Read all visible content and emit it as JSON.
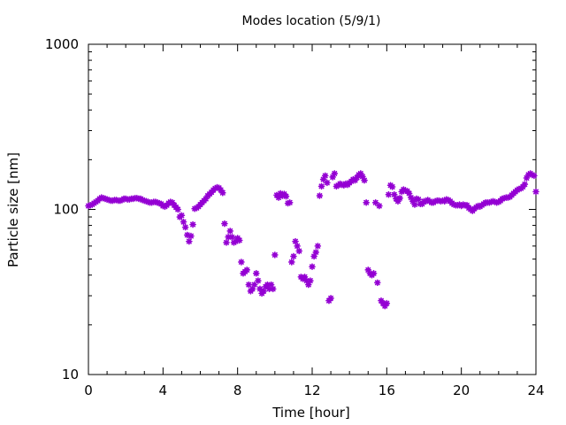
{
  "chart_data": {
    "type": "scatter",
    "title": "Modes location (5/9/1)",
    "xlabel": "Time [hour]",
    "ylabel": "Particle size [nm]",
    "xlim": [
      0,
      24
    ],
    "ylim": [
      10,
      1000
    ],
    "yscale": "log",
    "grid": false,
    "marker_color": "#9400d3",
    "x_ticks": [
      "0",
      "4",
      "8",
      "12",
      "16",
      "20",
      "24"
    ],
    "y_ticks": [
      "10",
      "100",
      "1000"
    ],
    "series": [
      {
        "points": [
          [
            0.0,
            105
          ],
          [
            0.1,
            106
          ],
          [
            0.2,
            107
          ],
          [
            0.3,
            109
          ],
          [
            0.4,
            111
          ],
          [
            0.5,
            113
          ],
          [
            0.6,
            116
          ],
          [
            0.7,
            118
          ],
          [
            0.8,
            117
          ],
          [
            0.9,
            116
          ],
          [
            1.0,
            115
          ],
          [
            1.1,
            114
          ],
          [
            1.2,
            113
          ],
          [
            1.3,
            113
          ],
          [
            1.4,
            114
          ],
          [
            1.5,
            114
          ],
          [
            1.6,
            113
          ],
          [
            1.7,
            113
          ],
          [
            1.8,
            114
          ],
          [
            1.9,
            116
          ],
          [
            2.0,
            116
          ],
          [
            2.1,
            115
          ],
          [
            2.2,
            115
          ],
          [
            2.3,
            116
          ],
          [
            2.4,
            116
          ],
          [
            2.5,
            117
          ],
          [
            2.6,
            117
          ],
          [
            2.7,
            116
          ],
          [
            2.8,
            116
          ],
          [
            2.9,
            114
          ],
          [
            3.0,
            113
          ],
          [
            3.1,
            112
          ],
          [
            3.2,
            111
          ],
          [
            3.3,
            110
          ],
          [
            3.4,
            110
          ],
          [
            3.5,
            111
          ],
          [
            3.6,
            111
          ],
          [
            3.7,
            110
          ],
          [
            3.8,
            109
          ],
          [
            3.9,
            108
          ],
          [
            4.0,
            105
          ],
          [
            4.1,
            104
          ],
          [
            4.2,
            106
          ],
          [
            4.3,
            109
          ],
          [
            4.4,
            111
          ],
          [
            4.5,
            110
          ],
          [
            4.6,
            106
          ],
          [
            4.7,
            103
          ],
          [
            4.8,
            100
          ],
          [
            4.9,
            90
          ],
          [
            5.0,
            92
          ],
          [
            5.1,
            84
          ],
          [
            5.2,
            78
          ],
          [
            5.3,
            70
          ],
          [
            5.4,
            64
          ],
          [
            5.5,
            69
          ],
          [
            5.6,
            81
          ],
          [
            5.7,
            101
          ],
          [
            5.8,
            102
          ],
          [
            5.9,
            104
          ],
          [
            6.0,
            107
          ],
          [
            6.1,
            110
          ],
          [
            6.2,
            113
          ],
          [
            6.3,
            116
          ],
          [
            6.4,
            121
          ],
          [
            6.5,
            124
          ],
          [
            6.6,
            127
          ],
          [
            6.7,
            131
          ],
          [
            6.8,
            134
          ],
          [
            6.9,
            136
          ],
          [
            7.0,
            135
          ],
          [
            7.1,
            131
          ],
          [
            7.2,
            126
          ],
          [
            7.3,
            82
          ],
          [
            7.4,
            63
          ],
          [
            7.5,
            68
          ],
          [
            7.6,
            74
          ],
          [
            7.7,
            68
          ],
          [
            7.8,
            63
          ],
          [
            7.9,
            64
          ],
          [
            8.0,
            67
          ],
          [
            8.1,
            65
          ],
          [
            8.2,
            48
          ],
          [
            8.3,
            41
          ],
          [
            8.4,
            42
          ],
          [
            8.5,
            43
          ],
          [
            8.6,
            35
          ],
          [
            8.7,
            32
          ],
          [
            8.8,
            33
          ],
          [
            8.9,
            35
          ],
          [
            9.0,
            41
          ],
          [
            9.1,
            37
          ],
          [
            9.2,
            33
          ],
          [
            9.3,
            31
          ],
          [
            9.4,
            32
          ],
          [
            9.5,
            34
          ],
          [
            9.6,
            35
          ],
          [
            9.7,
            33
          ],
          [
            9.8,
            35
          ],
          [
            9.9,
            33
          ],
          [
            10.0,
            53
          ],
          [
            10.1,
            122
          ],
          [
            10.2,
            118
          ],
          [
            10.3,
            125
          ],
          [
            10.4,
            121
          ],
          [
            10.5,
            124
          ],
          [
            10.6,
            120
          ],
          [
            10.7,
            109
          ],
          [
            10.8,
            110
          ],
          [
            10.9,
            48
          ],
          [
            11.0,
            52
          ],
          [
            11.1,
            64
          ],
          [
            11.2,
            60
          ],
          [
            11.3,
            56
          ],
          [
            11.4,
            39
          ],
          [
            11.5,
            38
          ],
          [
            11.6,
            39
          ],
          [
            11.7,
            37
          ],
          [
            11.8,
            35
          ],
          [
            11.9,
            37
          ],
          [
            12.0,
            45
          ],
          [
            12.1,
            52
          ],
          [
            12.2,
            55
          ],
          [
            12.3,
            60
          ],
          [
            12.4,
            121
          ],
          [
            12.5,
            138
          ],
          [
            12.6,
            152
          ],
          [
            12.7,
            160
          ],
          [
            12.8,
            145
          ],
          [
            12.9,
            28
          ],
          [
            13.0,
            29
          ],
          [
            13.1,
            157
          ],
          [
            13.2,
            165
          ],
          [
            13.3,
            138
          ],
          [
            13.4,
            140
          ],
          [
            13.5,
            143
          ],
          [
            13.6,
            141
          ],
          [
            13.7,
            140
          ],
          [
            13.8,
            143
          ],
          [
            13.9,
            141
          ],
          [
            14.0,
            145
          ],
          [
            14.1,
            148
          ],
          [
            14.2,
            152
          ],
          [
            14.3,
            150
          ],
          [
            14.4,
            156
          ],
          [
            14.5,
            162
          ],
          [
            14.6,
            165
          ],
          [
            14.7,
            158
          ],
          [
            14.8,
            150
          ],
          [
            14.9,
            110
          ],
          [
            15.0,
            43
          ],
          [
            15.1,
            41
          ],
          [
            15.2,
            40
          ],
          [
            15.3,
            41
          ],
          [
            15.4,
            110
          ],
          [
            15.5,
            36
          ],
          [
            15.6,
            105
          ],
          [
            15.7,
            28
          ],
          [
            15.8,
            27
          ],
          [
            15.9,
            26
          ],
          [
            16.0,
            27
          ],
          [
            16.1,
            123
          ],
          [
            16.2,
            140
          ],
          [
            16.3,
            137
          ],
          [
            16.4,
            123
          ],
          [
            16.5,
            116
          ],
          [
            16.6,
            112
          ],
          [
            16.7,
            117
          ],
          [
            16.8,
            128
          ],
          [
            16.9,
            132
          ],
          [
            17.0,
            130
          ],
          [
            17.1,
            129
          ],
          [
            17.2,
            125
          ],
          [
            17.3,
            118
          ],
          [
            17.4,
            112
          ],
          [
            17.5,
            107
          ],
          [
            17.6,
            116
          ],
          [
            17.7,
            115
          ],
          [
            17.8,
            108
          ],
          [
            17.9,
            108
          ],
          [
            18.0,
            112
          ],
          [
            18.1,
            112
          ],
          [
            18.2,
            114
          ],
          [
            18.3,
            112
          ],
          [
            18.4,
            110
          ],
          [
            18.5,
            110
          ],
          [
            18.6,
            112
          ],
          [
            18.7,
            113
          ],
          [
            18.8,
            113
          ],
          [
            18.9,
            112
          ],
          [
            19.0,
            113
          ],
          [
            19.1,
            112
          ],
          [
            19.2,
            115
          ],
          [
            19.3,
            114
          ],
          [
            19.4,
            112
          ],
          [
            19.5,
            109
          ],
          [
            19.6,
            107
          ],
          [
            19.7,
            106
          ],
          [
            19.8,
            106
          ],
          [
            19.9,
            107
          ],
          [
            20.0,
            105
          ],
          [
            20.1,
            107
          ],
          [
            20.2,
            106
          ],
          [
            20.3,
            106
          ],
          [
            20.4,
            102
          ],
          [
            20.5,
            100
          ],
          [
            20.6,
            98
          ],
          [
            20.7,
            101
          ],
          [
            20.8,
            103
          ],
          [
            20.9,
            105
          ],
          [
            21.0,
            104
          ],
          [
            21.1,
            106
          ],
          [
            21.2,
            108
          ],
          [
            21.3,
            110
          ],
          [
            21.4,
            110
          ],
          [
            21.5,
            110
          ],
          [
            21.6,
            111
          ],
          [
            21.7,
            112
          ],
          [
            21.8,
            111
          ],
          [
            21.9,
            110
          ],
          [
            22.0,
            111
          ],
          [
            22.1,
            113
          ],
          [
            22.2,
            116
          ],
          [
            22.3,
            117
          ],
          [
            22.4,
            118
          ],
          [
            22.5,
            118
          ],
          [
            22.6,
            119
          ],
          [
            22.7,
            122
          ],
          [
            22.8,
            125
          ],
          [
            22.9,
            128
          ],
          [
            23.0,
            131
          ],
          [
            23.1,
            133
          ],
          [
            23.2,
            134
          ],
          [
            23.3,
            137
          ],
          [
            23.4,
            142
          ],
          [
            23.5,
            155
          ],
          [
            23.6,
            162
          ],
          [
            23.7,
            165
          ],
          [
            23.8,
            162
          ],
          [
            23.9,
            160
          ],
          [
            24.0,
            128
          ]
        ]
      }
    ]
  }
}
